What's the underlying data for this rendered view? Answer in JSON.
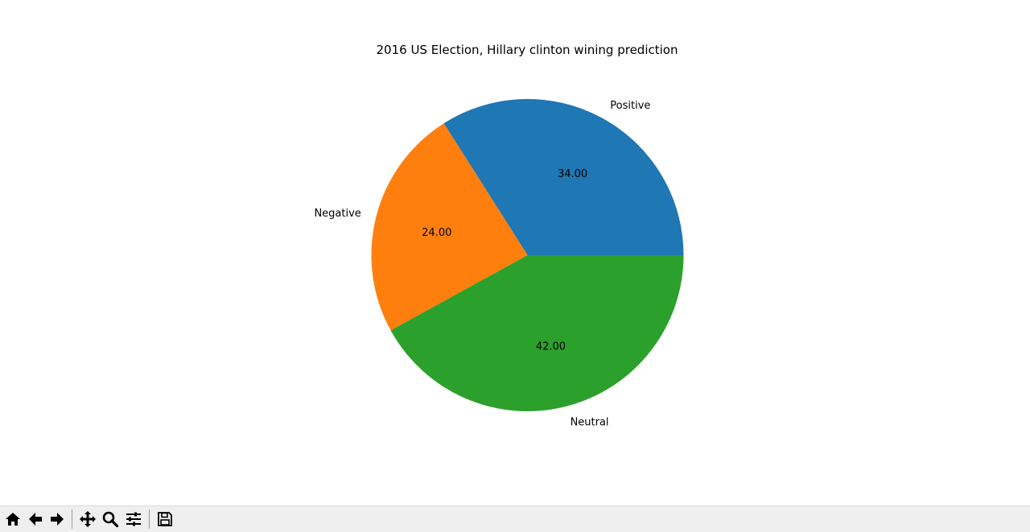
{
  "chart_data": {
    "type": "pie",
    "title": "2016 US Election, Hillary clinton wining prediction",
    "labels": [
      "Positive",
      "Negative",
      "Neutral"
    ],
    "values": [
      34,
      24,
      42
    ],
    "value_labels": [
      "34.00",
      "24.00",
      "42.00"
    ],
    "colors": [
      "#1f77b4",
      "#ff7f0e",
      "#2ca02c"
    ],
    "start_angle": 0,
    "direction": "counterclockwise"
  },
  "toolbar": {
    "buttons": [
      {
        "icon": "home-icon"
      },
      {
        "icon": "back-arrow-icon"
      },
      {
        "icon": "forward-arrow-icon"
      },
      {
        "icon": "pan-icon"
      },
      {
        "icon": "zoom-icon"
      },
      {
        "icon": "configure-subplots-icon"
      },
      {
        "icon": "save-icon"
      }
    ]
  }
}
